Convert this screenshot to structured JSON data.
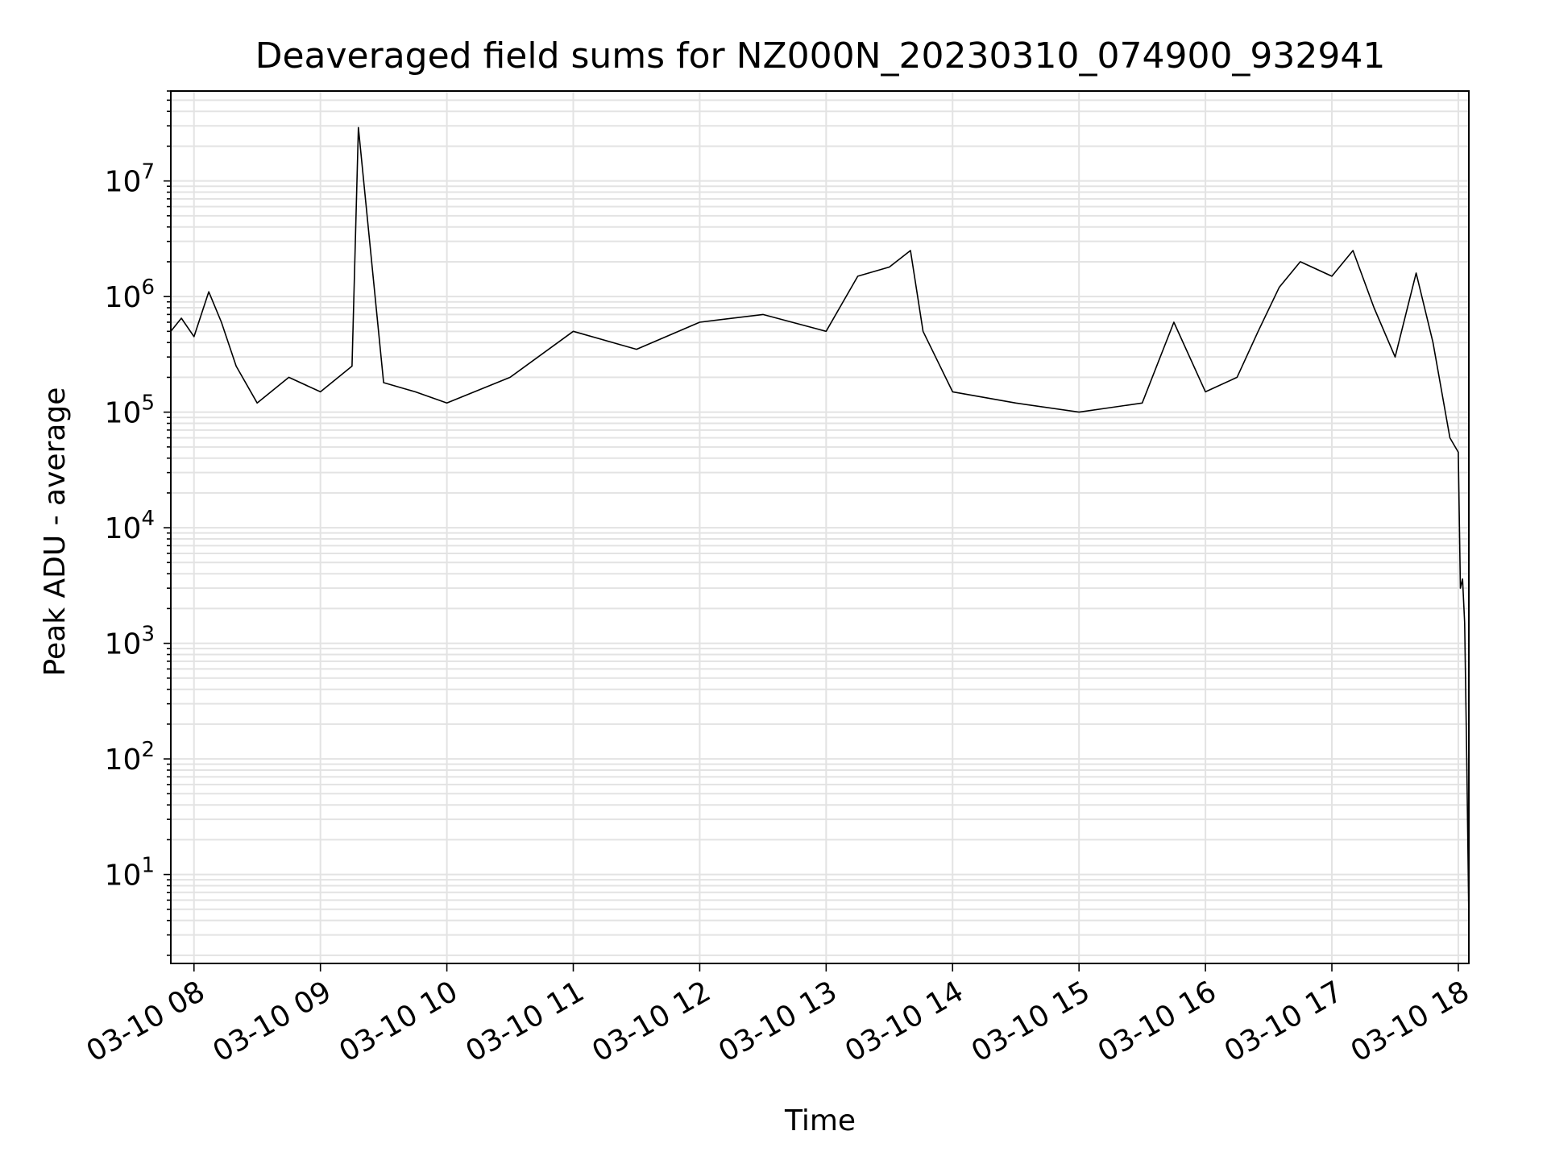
{
  "chart_data": {
    "type": "line",
    "title": "Deaveraged field sums for NZ000N_20230310_074900_932941",
    "xlabel": "Time",
    "ylabel": "Peak ADU - average",
    "yscale": "log",
    "ylim": [
      1.7,
      60000000
    ],
    "xlim": [
      "2023-03-10 07:49",
      "2023-03-10 18:05"
    ],
    "grid": true,
    "x_ticks": [
      {
        "value": "2023-03-10 08:00",
        "label": "03-10 08"
      },
      {
        "value": "2023-03-10 09:00",
        "label": "03-10 09"
      },
      {
        "value": "2023-03-10 10:00",
        "label": "03-10 10"
      },
      {
        "value": "2023-03-10 11:00",
        "label": "03-10 11"
      },
      {
        "value": "2023-03-10 12:00",
        "label": "03-10 12"
      },
      {
        "value": "2023-03-10 13:00",
        "label": "03-10 13"
      },
      {
        "value": "2023-03-10 14:00",
        "label": "03-10 14"
      },
      {
        "value": "2023-03-10 15:00",
        "label": "03-10 15"
      },
      {
        "value": "2023-03-10 16:00",
        "label": "03-10 16"
      },
      {
        "value": "2023-03-10 17:00",
        "label": "03-10 17"
      },
      {
        "value": "2023-03-10 18:00",
        "label": "03-10 18"
      }
    ],
    "y_ticks": [
      {
        "value": 10,
        "base": "10",
        "exp": "1"
      },
      {
        "value": 100,
        "base": "10",
        "exp": "2"
      },
      {
        "value": 1000,
        "base": "10",
        "exp": "3"
      },
      {
        "value": 10000,
        "base": "10",
        "exp": "4"
      },
      {
        "value": 100000,
        "base": "10",
        "exp": "5"
      },
      {
        "value": 1000000,
        "base": "10",
        "exp": "6"
      },
      {
        "value": 10000000,
        "base": "10",
        "exp": "7"
      }
    ],
    "series": [
      {
        "color": "#000000",
        "points": [
          [
            "2023-03-10 07:49",
            500000
          ],
          [
            "2023-03-10 07:54",
            650000
          ],
          [
            "2023-03-10 08:00",
            450000
          ],
          [
            "2023-03-10 08:07",
            1100000
          ],
          [
            "2023-03-10 08:13",
            600000
          ],
          [
            "2023-03-10 08:20",
            250000
          ],
          [
            "2023-03-10 08:30",
            120000
          ],
          [
            "2023-03-10 08:45",
            200000
          ],
          [
            "2023-03-10 09:00",
            150000
          ],
          [
            "2023-03-10 09:15",
            250000
          ],
          [
            "2023-03-10 09:18",
            29000000
          ],
          [
            "2023-03-10 09:30",
            180000
          ],
          [
            "2023-03-10 09:45",
            150000
          ],
          [
            "2023-03-10 10:00",
            120000
          ],
          [
            "2023-03-10 10:30",
            200000
          ],
          [
            "2023-03-10 11:00",
            500000
          ],
          [
            "2023-03-10 11:30",
            350000
          ],
          [
            "2023-03-10 12:00",
            600000
          ],
          [
            "2023-03-10 12:30",
            700000
          ],
          [
            "2023-03-10 13:00",
            500000
          ],
          [
            "2023-03-10 13:15",
            1500000
          ],
          [
            "2023-03-10 13:30",
            1800000
          ],
          [
            "2023-03-10 13:40",
            2500000
          ],
          [
            "2023-03-10 13:46",
            500000
          ],
          [
            "2023-03-10 14:00",
            150000
          ],
          [
            "2023-03-10 14:30",
            120000
          ],
          [
            "2023-03-10 15:00",
            100000
          ],
          [
            "2023-03-10 15:30",
            120000
          ],
          [
            "2023-03-10 15:45",
            600000
          ],
          [
            "2023-03-10 16:00",
            150000
          ],
          [
            "2023-03-10 16:15",
            200000
          ],
          [
            "2023-03-10 16:25",
            500000
          ],
          [
            "2023-03-10 16:35",
            1200000
          ],
          [
            "2023-03-10 16:45",
            2000000
          ],
          [
            "2023-03-10 17:00",
            1500000
          ],
          [
            "2023-03-10 17:10",
            2500000
          ],
          [
            "2023-03-10 17:20",
            800000
          ],
          [
            "2023-03-10 17:30",
            300000
          ],
          [
            "2023-03-10 17:40",
            1600000
          ],
          [
            "2023-03-10 17:48",
            400000
          ],
          [
            "2023-03-10 17:56",
            60000
          ],
          [
            "2023-03-10 18:00",
            45000
          ],
          [
            "2023-03-10 18:01",
            3000
          ],
          [
            "2023-03-10 18:02",
            3600
          ],
          [
            "2023-03-10 18:03",
            1500
          ],
          [
            "2023-03-10 18:04",
            100
          ],
          [
            "2023-03-10 18:05",
            4
          ]
        ]
      }
    ]
  }
}
